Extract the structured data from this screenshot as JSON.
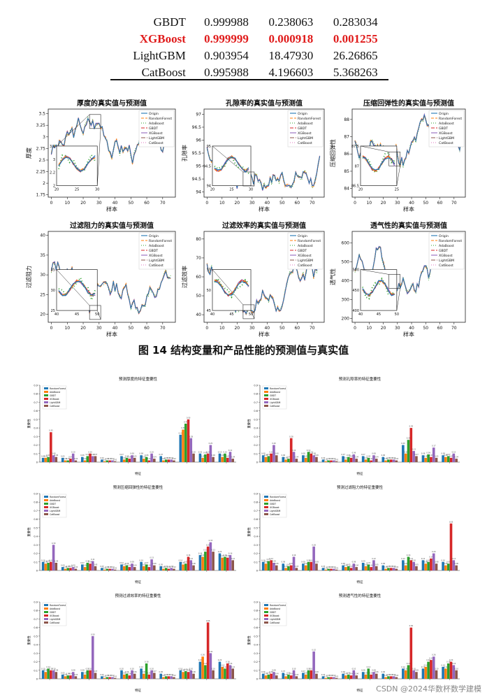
{
  "results_table": {
    "rows": [
      {
        "model": "GBDT",
        "v1": "0.999988",
        "v2": "0.238063",
        "v3": "0.283034",
        "highlight": false
      },
      {
        "model": "XGBoost",
        "v1": "0.999999",
        "v2": "0.000918",
        "v3": "0.001255",
        "highlight": true
      },
      {
        "model": "LightGBM",
        "v1": "0.903954",
        "v2": "18.47930",
        "v3": "26.26865",
        "highlight": false
      },
      {
        "model": "CatBoost",
        "v1": "0.995988",
        "v2": "4.196603",
        "v3": "5.368263",
        "highlight": false
      }
    ]
  },
  "line_legend": [
    "Origin",
    "RandomForest",
    "AdaBoost",
    "GBDT",
    "XGBoost",
    "LightGBM",
    "CatBoost"
  ],
  "bar_legend": [
    "RandomForest",
    "AdaBoost",
    "GBDT",
    "XGBoost",
    "LightGBM",
    "CatBoost"
  ],
  "model_colors": {
    "Origin": "#1f77b4",
    "RandomForest": "#ff7f0e",
    "AdaBoost": "#2ca02c",
    "GBDT": "#d62728",
    "XGBoost": "#9467bd",
    "LightGBM": "#8c564b",
    "CatBoost": "#e377c2"
  },
  "bar_colors": [
    "#1f77b4",
    "#ff7f0e",
    "#2ca02c",
    "#d62728",
    "#9467bd",
    "#8c564b"
  ],
  "figure_caption": "图 14  结构变量和产品性能的预测值与真实值",
  "watermark": "CSDN @2024华数杯数学建模",
  "chart_data": [
    {
      "type": "line",
      "title": "厚度的真实值与预测值",
      "xlabel": "样本",
      "ylabel": "厚度",
      "xticks": [
        0,
        10,
        20,
        30,
        40,
        50,
        60,
        70
      ],
      "yticks": [
        1.75,
        2.0,
        2.25,
        2.5,
        2.75,
        3.0,
        3.25,
        3.5
      ],
      "ylim": [
        1.7,
        3.6
      ],
      "inset": {
        "xticks": [
          20,
          25,
          30
        ],
        "yticks": [
          2.0,
          2.2,
          3.0,
          3.2
        ]
      },
      "seed": 3
    },
    {
      "type": "line",
      "title": "孔隙率的真实值与预测值",
      "xlabel": "样本",
      "ylabel": "孔隙率",
      "xticks": [
        0,
        10,
        20,
        30,
        40,
        50,
        60,
        70
      ],
      "yticks": [
        94.0,
        94.5,
        95.0,
        95.5,
        96.0,
        96.5,
        97.0
      ],
      "ylim": [
        93.8,
        97.2
      ],
      "inset": {
        "xticks": [
          20,
          25,
          30
        ],
        "yticks": [
          94.0,
          94.5,
          95.0
        ]
      },
      "seed": 7
    },
    {
      "type": "line",
      "title": "压缩回弹性的真实值与预测值",
      "xlabel": "样本",
      "ylabel": "压缩回弹性",
      "xticks": [
        0,
        10,
        20,
        30,
        40,
        50,
        60,
        70
      ],
      "yticks": [
        84,
        85,
        86,
        87,
        88
      ],
      "ylim": [
        83.5,
        88.6
      ],
      "inset": {
        "xticks": [
          20,
          25
        ],
        "yticks": [
          86.5,
          87.0,
          87.5
        ]
      },
      "seed": 11
    },
    {
      "type": "line",
      "title": "过滤阻力的真实值与预测值",
      "xlabel": "样本",
      "ylabel": "过滤阻力",
      "xticks": [
        0,
        10,
        20,
        30,
        40,
        50,
        60,
        70
      ],
      "yticks": [
        20,
        25,
        30,
        35,
        40
      ],
      "ylim": [
        18,
        41
      ],
      "inset": {
        "xticks": [
          40,
          45,
          50
        ],
        "yticks": [
          25,
          30,
          35
        ]
      },
      "seed": 13
    },
    {
      "type": "line",
      "title": "过滤效率的真实值与预测值",
      "xlabel": "样本",
      "ylabel": "过滤效率",
      "xticks": [
        0,
        10,
        20,
        30,
        40,
        50,
        60,
        70
      ],
      "yticks": [
        40,
        50,
        60,
        70,
        80
      ],
      "ylim": [
        36,
        84
      ],
      "inset": {
        "xticks": [
          40,
          45,
          50
        ],
        "yticks": [
          45,
          50,
          55
        ]
      },
      "seed": 17
    },
    {
      "type": "line",
      "title": "透气性的真实值与预测值",
      "xlabel": "样本",
      "ylabel": "透气性",
      "xticks": [
        0,
        10,
        20,
        30,
        40,
        50,
        60,
        70
      ],
      "yticks": [
        200,
        300,
        400,
        500,
        600
      ],
      "ylim": [
        180,
        660
      ],
      "inset": {
        "xticks": [
          40,
          45,
          50
        ],
        "yticks": [
          400,
          450,
          500
        ]
      },
      "seed": 19
    },
    {
      "type": "bar",
      "title": "预测厚度的特征重要性",
      "xlabel": "特征",
      "ylabel": "重要性",
      "yticks": [
        0.0,
        0.1,
        0.2,
        0.3,
        0.4,
        0.5,
        0.6,
        0.7,
        0.8,
        0.9
      ],
      "ylim": [
        0,
        0.9
      ],
      "groups": [
        [
          0.05,
          0.05,
          0.06,
          0.35,
          0.08,
          0.06
        ],
        [
          0.05,
          0.02,
          0.02,
          0.04,
          0.1,
          0.02
        ],
        [
          0.06,
          0.02,
          0.07,
          0.1,
          0.07,
          0.07
        ],
        [
          0.03,
          0.01,
          0.02,
          0.02,
          0.02,
          0.01
        ],
        [
          0.07,
          0.03,
          0.05,
          0.04,
          0.08,
          0.05
        ],
        [
          0.08,
          0.04,
          0.06,
          0.02,
          0.1,
          0.04
        ],
        [
          0.07,
          0.02,
          0.03,
          0.03,
          0.03,
          0.02
        ],
        [
          0.32,
          0.38,
          0.45,
          0.5,
          0.28,
          0.1
        ],
        [
          0.1,
          0.05,
          0.09,
          0.1,
          0.2,
          0.06
        ],
        [
          0.1,
          0.06,
          0.1,
          0.05,
          0.12,
          0.04
        ]
      ]
    },
    {
      "type": "bar",
      "title": "预测孔隙率的特征重要性",
      "xlabel": "特征",
      "ylabel": "重要性",
      "yticks": [
        0.0,
        0.1,
        0.2,
        0.3,
        0.4,
        0.5,
        0.6,
        0.7,
        0.8,
        0.9
      ],
      "ylim": [
        0,
        0.9
      ],
      "groups": [
        [
          0.08,
          0.06,
          0.07,
          0.1,
          0.2,
          0.08
        ],
        [
          0.06,
          0.03,
          0.04,
          0.28,
          0.12,
          0.04
        ],
        [
          0.08,
          0.05,
          0.12,
          0.1,
          0.08,
          0.06
        ],
        [
          0.03,
          0.01,
          0.02,
          0.02,
          0.02,
          0.01
        ],
        [
          0.07,
          0.03,
          0.06,
          0.05,
          0.09,
          0.04
        ],
        [
          0.07,
          0.03,
          0.05,
          0.02,
          0.08,
          0.04
        ],
        [
          0.06,
          0.02,
          0.03,
          0.03,
          0.03,
          0.02
        ],
        [
          0.2,
          0.1,
          0.26,
          0.4,
          0.13,
          0.07
        ],
        [
          0.08,
          0.05,
          0.09,
          0.06,
          0.17,
          0.05
        ],
        [
          0.08,
          0.06,
          0.07,
          0.05,
          0.1,
          0.04
        ]
      ]
    },
    {
      "type": "bar",
      "title": "预测压缩回弹性的特征重要性",
      "xlabel": "特征",
      "ylabel": "重要性",
      "yticks": [
        0.0,
        0.1,
        0.2,
        0.3,
        0.4,
        0.5,
        0.6,
        0.7,
        0.8,
        0.9
      ],
      "ylim": [
        0,
        0.9
      ],
      "groups": [
        [
          0.1,
          0.08,
          0.09,
          0.1,
          0.3,
          0.09
        ],
        [
          0.04,
          0.02,
          0.03,
          0.03,
          0.04,
          0.02
        ],
        [
          0.07,
          0.04,
          0.09,
          0.08,
          0.11,
          0.05
        ],
        [
          0.03,
          0.01,
          0.02,
          0.02,
          0.02,
          0.01
        ],
        [
          0.07,
          0.05,
          0.06,
          0.04,
          0.08,
          0.04
        ],
        [
          0.1,
          0.05,
          0.07,
          0.04,
          0.13,
          0.06
        ],
        [
          0.05,
          0.02,
          0.03,
          0.02,
          0.03,
          0.02
        ],
        [
          0.1,
          0.07,
          0.08,
          0.16,
          0.12,
          0.06
        ],
        [
          0.18,
          0.16,
          0.22,
          0.28,
          0.33,
          0.22
        ],
        [
          0.2,
          0.15,
          0.16,
          0.15,
          0.18,
          0.12
        ]
      ]
    },
    {
      "type": "bar",
      "title": "预测过滤阻力的特征重要性",
      "xlabel": "特征",
      "ylabel": "重要性",
      "yticks": [
        0.0,
        0.1,
        0.2,
        0.3,
        0.4,
        0.5,
        0.6,
        0.7,
        0.8,
        0.9
      ],
      "ylim": [
        0,
        0.9
      ],
      "groups": [
        [
          0.1,
          0.08,
          0.11,
          0.12,
          0.09,
          0.06
        ],
        [
          0.08,
          0.03,
          0.05,
          0.06,
          0.16,
          0.03
        ],
        [
          0.08,
          0.06,
          0.1,
          0.1,
          0.28,
          0.08
        ],
        [
          0.03,
          0.01,
          0.02,
          0.02,
          0.02,
          0.01
        ],
        [
          0.06,
          0.04,
          0.05,
          0.03,
          0.08,
          0.04
        ],
        [
          0.09,
          0.05,
          0.07,
          0.04,
          0.12,
          0.05
        ],
        [
          0.06,
          0.02,
          0.03,
          0.03,
          0.03,
          0.02
        ],
        [
          0.12,
          0.06,
          0.16,
          0.12,
          0.1,
          0.05
        ],
        [
          0.12,
          0.08,
          0.1,
          0.14,
          0.2,
          0.08
        ],
        [
          0.1,
          0.06,
          0.08,
          0.55,
          0.12,
          0.06
        ]
      ]
    },
    {
      "type": "bar",
      "title": "预测过滤效率的特征重要性",
      "xlabel": "特征",
      "ylabel": "重要性",
      "yticks": [
        0.0,
        0.1,
        0.2,
        0.3,
        0.4,
        0.5,
        0.6,
        0.7,
        0.8,
        0.9
      ],
      "ylim": [
        0,
        0.9
      ],
      "groups": [
        [
          0.1,
          0.08,
          0.12,
          0.1,
          0.1,
          0.08
        ],
        [
          0.05,
          0.03,
          0.04,
          0.04,
          0.08,
          0.03
        ],
        [
          0.08,
          0.05,
          0.1,
          0.1,
          0.5,
          0.07
        ],
        [
          0.03,
          0.01,
          0.02,
          0.02,
          0.02,
          0.01
        ],
        [
          0.1,
          0.05,
          0.06,
          0.04,
          0.1,
          0.06
        ],
        [
          0.12,
          0.06,
          0.18,
          0.05,
          0.1,
          0.07
        ],
        [
          0.06,
          0.02,
          0.03,
          0.03,
          0.03,
          0.02
        ],
        [
          0.1,
          0.08,
          0.09,
          0.08,
          0.1,
          0.06
        ],
        [
          0.2,
          0.26,
          0.16,
          0.66,
          0.3,
          0.1
        ],
        [
          0.2,
          0.14,
          0.12,
          0.18,
          0.16,
          0.12
        ]
      ]
    },
    {
      "type": "bar",
      "title": "预测透气性的特征重要性",
      "xlabel": "特征",
      "ylabel": "重要性",
      "yticks": [
        0.0,
        0.1,
        0.2,
        0.3,
        0.4,
        0.5,
        0.6,
        0.7,
        0.8,
        0.9
      ],
      "ylim": [
        0,
        0.9
      ],
      "groups": [
        [
          0.06,
          0.04,
          0.05,
          0.06,
          0.08,
          0.04
        ],
        [
          0.07,
          0.03,
          0.05,
          0.04,
          0.1,
          0.03
        ],
        [
          0.07,
          0.05,
          0.1,
          0.1,
          0.32,
          0.06
        ],
        [
          0.03,
          0.01,
          0.02,
          0.02,
          0.02,
          0.01
        ],
        [
          0.06,
          0.04,
          0.05,
          0.04,
          0.1,
          0.04
        ],
        [
          0.08,
          0.05,
          0.12,
          0.05,
          0.08,
          0.06
        ],
        [
          0.06,
          0.02,
          0.03,
          0.03,
          0.03,
          0.02
        ],
        [
          0.12,
          0.1,
          0.16,
          0.6,
          0.1,
          0.08
        ],
        [
          0.12,
          0.14,
          0.2,
          0.22,
          0.26,
          0.1
        ],
        [
          0.14,
          0.12,
          0.18,
          0.2,
          0.16,
          0.1
        ]
      ]
    }
  ]
}
